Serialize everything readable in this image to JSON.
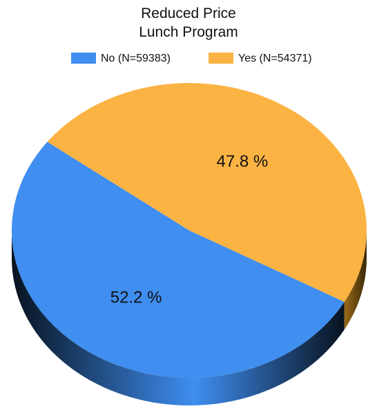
{
  "chart_data": {
    "type": "pie",
    "title": "Reduced Price Lunch Program",
    "labels": [
      "No (N=59383)",
      "Yes (N=54371)"
    ],
    "values": [
      52.2,
      47.8
    ],
    "value_labels": [
      "52.2 %",
      "47.8 %"
    ],
    "colors": [
      "#3f8ef0",
      "#fbb343"
    ],
    "legend": "top"
  }
}
